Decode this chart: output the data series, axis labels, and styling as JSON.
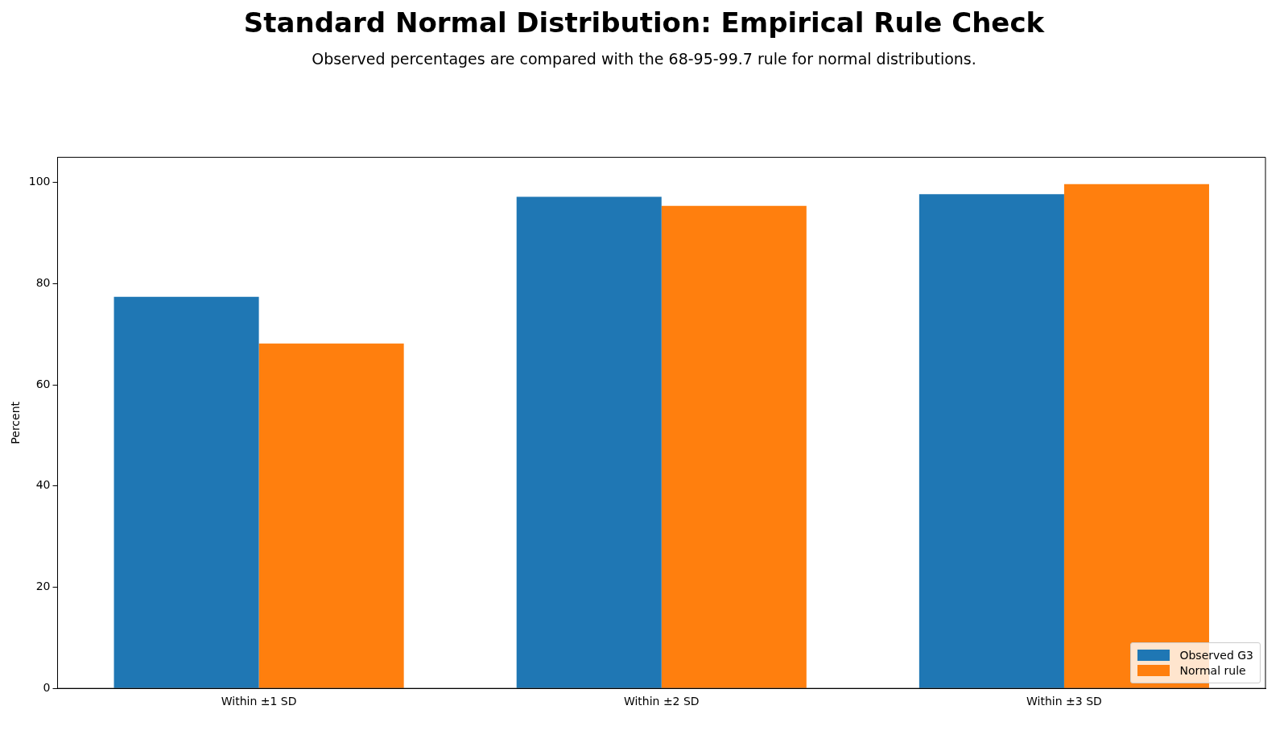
{
  "chart_data": {
    "type": "bar",
    "title": "Standard Normal Distribution: Empirical Rule Check",
    "subtitle": "Observed percentages are compared with the 68-95-99.7 rule for normal distributions.",
    "ylabel": "Percent",
    "categories": [
      "Within ±1 SD",
      "Within ±2 SD",
      "Within ±3 SD"
    ],
    "series": [
      {
        "name": "Observed G3",
        "color": "#1f77b4",
        "values": [
          77.4,
          97.2,
          97.7
        ]
      },
      {
        "name": "Normal rule",
        "color": "#ff7f0e",
        "values": [
          68.2,
          95.4,
          99.7
        ]
      }
    ],
    "ylim": [
      0,
      105
    ],
    "yticks": [
      0,
      20,
      40,
      60,
      80,
      100
    ],
    "grid": false,
    "legend": "bottom right"
  }
}
